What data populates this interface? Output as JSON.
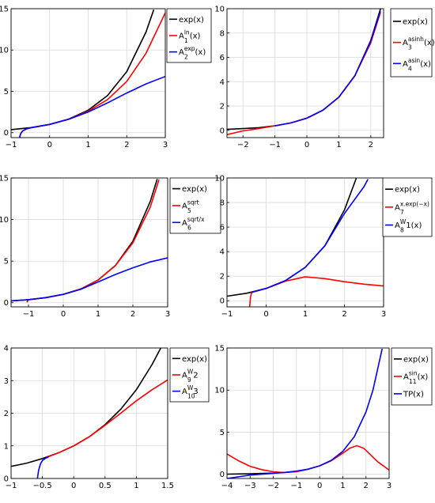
{
  "chart_data": [
    {
      "type": "line",
      "xlim": [
        -1,
        3
      ],
      "ylim": [
        -0.6,
        15
      ],
      "xticks": [
        -1,
        0,
        1,
        2,
        3
      ],
      "yticks": [
        0,
        5,
        10,
        15
      ],
      "legend": [
        {
          "base": "exp(x)",
          "sup": "",
          "sub": "",
          "tail": "",
          "color": "#000000"
        },
        {
          "base": "A",
          "sup": "ln",
          "sub": "1",
          "tail": "(x)",
          "color": "#ff0000"
        },
        {
          "base": "A",
          "sup": "exp",
          "sub": "2",
          "tail": "(x)",
          "color": "#0000ff"
        }
      ],
      "series": [
        {
          "color": "#000000",
          "x": [
            -1,
            -0.5,
            0,
            0.5,
            1,
            1.5,
            2,
            2.5,
            2.7
          ],
          "y": [
            0.37,
            0.61,
            1,
            1.65,
            2.72,
            4.48,
            7.39,
            12.18,
            14.88
          ]
        },
        {
          "color": "#ff0000",
          "x": [
            -0.78,
            -0.75,
            -0.7,
            -0.6,
            -0.5,
            0,
            0.5,
            1,
            1.5,
            2,
            2.5,
            3
          ],
          "y": [
            -0.6,
            -0.1,
            0.2,
            0.45,
            0.58,
            1,
            1.63,
            2.6,
            4.0,
            6.2,
            9.6,
            14.5
          ]
        },
        {
          "color": "#0000ff",
          "x": [
            -0.78,
            -0.75,
            -0.7,
            -0.6,
            -0.5,
            0,
            0.5,
            1,
            1.5,
            2,
            2.5,
            3
          ],
          "y": [
            -0.6,
            -0.1,
            0.2,
            0.45,
            0.58,
            1,
            1.63,
            2.5,
            3.6,
            4.8,
            5.9,
            6.8
          ]
        }
      ]
    },
    {
      "type": "line",
      "xlim": [
        -2.5,
        2.4
      ],
      "ylim": [
        -0.6,
        10
      ],
      "xticks": [
        -2,
        -1,
        0,
        1,
        2
      ],
      "yticks": [
        0,
        2,
        4,
        6,
        8,
        10
      ],
      "legend": [
        {
          "base": "exp(x)",
          "sup": "",
          "sub": "",
          "tail": "",
          "color": "#000000"
        },
        {
          "base": "A",
          "sup": "asinh",
          "sub": "3",
          "tail": "(x)",
          "color": "#ff0000"
        },
        {
          "base": "A",
          "sup": "asin",
          "sub": "4",
          "tail": "(x)",
          "color": "#0000ff"
        }
      ],
      "series": [
        {
          "color": "#000000",
          "x": [
            -2.5,
            -2,
            -1.5,
            -1,
            -0.5,
            0,
            0.5,
            1,
            1.5,
            2,
            2.3
          ],
          "y": [
            0.08,
            0.14,
            0.22,
            0.37,
            0.61,
            1,
            1.65,
            2.72,
            4.48,
            7.39,
            9.97
          ]
        },
        {
          "color": "#ff0000",
          "x": [
            -2.5,
            -2,
            -1.5,
            -1,
            -0.5,
            0,
            0.5,
            1,
            1.5,
            2,
            2.3
          ],
          "y": [
            -0.35,
            -0.05,
            0.15,
            0.37,
            0.61,
            1,
            1.65,
            2.72,
            4.48,
            7.2,
            9.7
          ]
        },
        {
          "color": "#0000ff",
          "x": [
            -1,
            -0.5,
            0,
            0.5,
            1,
            1.5,
            2,
            2.3
          ],
          "y": [
            0.37,
            0.61,
            1,
            1.65,
            2.72,
            4.48,
            7.35,
            9.8
          ]
        }
      ]
    },
    {
      "type": "line",
      "xlim": [
        -1.5,
        3
      ],
      "ylim": [
        -0.5,
        15
      ],
      "xticks": [
        -1,
        0,
        1,
        2,
        3
      ],
      "yticks": [
        0,
        5,
        10,
        15
      ],
      "legend": [
        {
          "base": "exp(x)",
          "sup": "",
          "sub": "",
          "tail": "",
          "color": "#000000"
        },
        {
          "base": "A",
          "sup": "sqrt",
          "sub": "5",
          "tail": "",
          "color": "#ff0000"
        },
        {
          "base": "A",
          "sup": "sqrt/x",
          "sub": "6",
          "tail": "",
          "color": "#0000ff"
        }
      ],
      "series": [
        {
          "color": "#000000",
          "x": [
            -1.5,
            -1,
            -0.5,
            0,
            0.5,
            1,
            1.5,
            2,
            2.5,
            2.7
          ],
          "y": [
            0.22,
            0.37,
            0.61,
            1,
            1.65,
            2.72,
            4.48,
            7.39,
            12.18,
            14.88
          ]
        },
        {
          "color": "#ff0000",
          "x": [
            -1.05,
            -1,
            -0.5,
            0,
            0.5,
            1,
            1.5,
            2,
            2.5,
            2.75
          ],
          "y": [
            0.05,
            0.37,
            0.61,
            1,
            1.65,
            2.72,
            4.48,
            7.2,
            11.5,
            14.8
          ]
        },
        {
          "color": "#0000ff",
          "x": [
            -1.5,
            -1,
            -0.5,
            0,
            0.5,
            1,
            1.5,
            2,
            2.5,
            3
          ],
          "y": [
            0.22,
            0.37,
            0.61,
            1,
            1.6,
            2.5,
            3.4,
            4.2,
            4.9,
            5.4
          ]
        }
      ]
    },
    {
      "type": "line",
      "xlim": [
        -1,
        3
      ],
      "ylim": [
        -0.5,
        10
      ],
      "xticks": [
        -1,
        0,
        1,
        2,
        3
      ],
      "yticks": [
        0,
        2,
        4,
        6,
        8,
        10
      ],
      "legend": [
        {
          "base": "exp(x)",
          "sup": "",
          "sub": "",
          "tail": "",
          "color": "#000000"
        },
        {
          "base": "A",
          "sup": "x.exp(−x)",
          "sub": "7",
          "tail": "",
          "color": "#ff0000"
        },
        {
          "base": "A",
          "sup": "W",
          "sub": "8",
          "tail": "1(x)",
          "color": "#0000ff"
        }
      ],
      "series": [
        {
          "color": "#000000",
          "x": [
            -1,
            -0.5,
            0,
            0.5,
            1,
            1.5,
            2,
            2.3
          ],
          "y": [
            0.37,
            0.61,
            1,
            1.65,
            2.72,
            4.48,
            7.39,
            9.97
          ]
        },
        {
          "color": "#ff0000",
          "x": [
            -0.42,
            -0.4,
            -0.37,
            -0.3,
            0,
            0.5,
            1,
            1.5,
            2,
            2.5,
            3
          ],
          "y": [
            -0.5,
            0.3,
            0.65,
            0.74,
            1.0,
            1.6,
            1.95,
            1.8,
            1.55,
            1.35,
            1.2
          ]
        },
        {
          "color": "#0000ff",
          "x": [
            -0.37,
            0,
            0.5,
            1,
            1.5,
            2,
            2.5,
            2.6
          ],
          "y": [
            0.69,
            1,
            1.65,
            2.72,
            4.48,
            7.1,
            9.3,
            9.9
          ]
        }
      ]
    },
    {
      "type": "line",
      "xlim": [
        -1,
        1.5
      ],
      "ylim": [
        0,
        4
      ],
      "xticks": [
        -1,
        -0.5,
        0,
        0.5,
        1,
        1.5
      ],
      "yticks": [
        0,
        1,
        2,
        3,
        4
      ],
      "legend": [
        {
          "base": "exp(x)",
          "sup": "",
          "sub": "",
          "tail": "",
          "color": "#000000"
        },
        {
          "base": "A",
          "sup": "W",
          "sub": "9",
          "tail": "2",
          "color": "#ff0000"
        },
        {
          "base": "A",
          "sup": "W",
          "sub": "10",
          "tail": "3",
          "color": "#0000ff"
        }
      ],
      "series": [
        {
          "color": "#000000",
          "x": [
            -1,
            -0.75,
            -0.5,
            -0.25,
            0,
            0.25,
            0.5,
            0.75,
            1,
            1.25,
            1.39
          ],
          "y": [
            0.37,
            0.47,
            0.61,
            0.78,
            1,
            1.28,
            1.65,
            2.12,
            2.72,
            3.49,
            4.0
          ]
        },
        {
          "color": "#ff0000",
          "x": [
            -0.43,
            -0.25,
            0,
            0.25,
            0.5,
            0.75,
            1,
            1.25,
            1.5
          ],
          "y": [
            0.65,
            0.78,
            1,
            1.28,
            1.63,
            2.0,
            2.38,
            2.72,
            3.02
          ]
        },
        {
          "color": "#0000ff",
          "x": [
            -0.58,
            -0.56,
            -0.53,
            -0.5,
            -0.45,
            -0.4
          ],
          "y": [
            0,
            0.25,
            0.45,
            0.55,
            0.62,
            0.66
          ]
        }
      ]
    },
    {
      "type": "line",
      "xlim": [
        -4,
        3
      ],
      "ylim": [
        -0.5,
        15
      ],
      "xticks": [
        -4,
        -3,
        -2,
        -1,
        0,
        1,
        2,
        3
      ],
      "yticks": [
        0,
        5,
        10,
        15
      ],
      "legend": [
        {
          "base": "exp(x)",
          "sup": "",
          "sub": "",
          "tail": "",
          "color": "#000000"
        },
        {
          "base": "A",
          "sup": "sin",
          "sub": "11",
          "tail": "(x)",
          "color": "#ff0000"
        },
        {
          "base": "TP(x)",
          "sup": "",
          "sub": "",
          "tail": "",
          "color": "#0000ff"
        }
      ],
      "series": [
        {
          "color": "#000000",
          "x": [
            -4,
            -3,
            -2,
            -1.5
          ],
          "y": [
            0.02,
            0.05,
            0.14,
            0.22
          ]
        },
        {
          "color": "#ff0000",
          "x": [
            -4,
            -3.5,
            -3,
            -2.5,
            -2,
            -1.5,
            -1,
            -0.5,
            0,
            0.5,
            1,
            1.3,
            1.6,
            1.9,
            2.2,
            2.5,
            3
          ],
          "y": [
            2.4,
            1.6,
            0.95,
            0.55,
            0.3,
            0.2,
            0.3,
            0.6,
            1.0,
            1.6,
            2.5,
            3.1,
            3.4,
            3.1,
            2.3,
            1.5,
            0.5
          ]
        },
        {
          "color": "#0000ff",
          "x": [
            -4,
            -3,
            -2,
            -1.5,
            -1,
            -0.5,
            0,
            0.5,
            1,
            1.5,
            2,
            2.3,
            2.7
          ],
          "y": [
            -0.5,
            -0.1,
            0.12,
            0.22,
            0.37,
            0.61,
            1,
            1.65,
            2.72,
            4.48,
            7.39,
            9.97,
            14.9
          ]
        }
      ]
    }
  ]
}
